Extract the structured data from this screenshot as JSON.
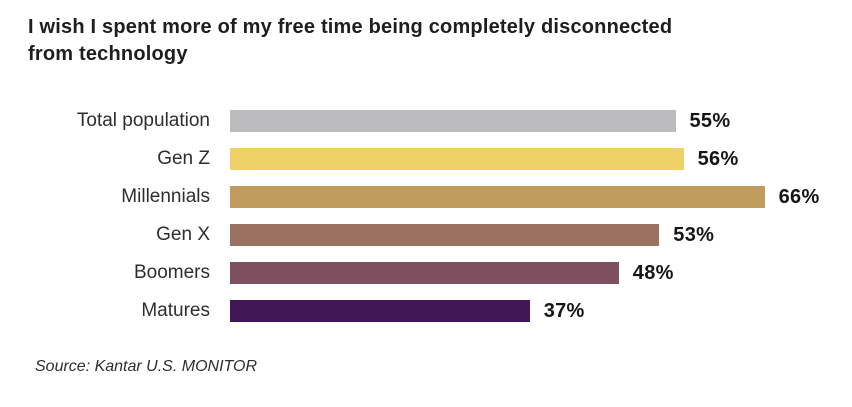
{
  "chart": {
    "title": "I wish I spent more of my free time being completely disconnected from technology",
    "source": "Source: Kantar U.S. MONITOR"
  },
  "chart_data": {
    "type": "bar",
    "orientation": "horizontal",
    "title": "I wish I spent more of my free time being completely disconnected from technology",
    "categories": [
      "Total population",
      "Gen Z",
      "Millennials",
      "Gen X",
      "Boomers",
      "Matures"
    ],
    "values": [
      55,
      56,
      66,
      53,
      48,
      37
    ],
    "value_labels": [
      "55%",
      "56%",
      "66%",
      "53%",
      "48%",
      "37%"
    ],
    "bar_colors": [
      "#bcbcbf",
      "#eed267",
      "#c09b5e",
      "#9b7161",
      "#7d4f5f",
      "#411556"
    ],
    "xlabel": "",
    "ylabel": "",
    "xlim": [
      0,
      70
    ],
    "grid": false,
    "legend": false,
    "value_label_position": "end-of-bar",
    "source": "Source: Kantar U.S. MONITOR",
    "text_colors": {
      "title": "#1e1e1e",
      "category": "#2e2e2e",
      "value": "#151515",
      "source": "#2e2e2e"
    }
  }
}
